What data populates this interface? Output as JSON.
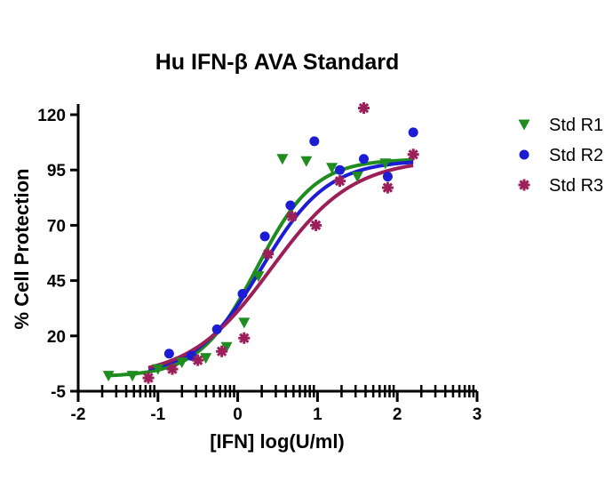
{
  "chart_data": {
    "type": "scatter",
    "title": "Hu IFN-β AVA Standard",
    "xlabel": "[IFN] log(U/ml)",
    "ylabel": "% Cell Protection",
    "xlim": [
      -2,
      3
    ],
    "ylim": [
      -5,
      120
    ],
    "x_ticks": [
      "-2",
      "-1",
      "0",
      "1",
      "2",
      "3"
    ],
    "y_ticks": [
      "-5",
      "20",
      "45",
      "70",
      "95",
      "120"
    ],
    "grid": false,
    "legend_position": "top-right",
    "series": [
      {
        "name": "Std R1",
        "marker": "triangle-down",
        "color": "#1e8c1e",
        "points": [
          [
            -1.62,
            2
          ],
          [
            -1.32,
            2
          ],
          [
            -1.0,
            5
          ],
          [
            -0.7,
            8
          ],
          [
            -0.4,
            10
          ],
          [
            -0.14,
            15
          ],
          [
            0.08,
            26
          ],
          [
            0.26,
            47
          ],
          [
            0.56,
            100
          ],
          [
            0.86,
            99
          ],
          [
            1.18,
            96
          ],
          [
            1.5,
            92
          ],
          [
            1.85,
            98
          ]
        ],
        "fit": {
          "bottom": 1.5,
          "top": 100,
          "log_ec50": 0.24,
          "hill": 1.2,
          "x_range": [
            -1.62,
            2.2
          ]
        }
      },
      {
        "name": "Std R2",
        "marker": "circle",
        "color": "#1c1cd4",
        "points": [
          [
            -0.86,
            12
          ],
          [
            -0.58,
            11
          ],
          [
            -0.26,
            23
          ],
          [
            0.06,
            39
          ],
          [
            0.34,
            65
          ],
          [
            0.66,
            79
          ],
          [
            0.96,
            108
          ],
          [
            1.28,
            95
          ],
          [
            1.58,
            100
          ],
          [
            1.88,
            92
          ],
          [
            2.2,
            112
          ]
        ],
        "fit": {
          "bottom": 2,
          "top": 99.5,
          "log_ec50": 0.3,
          "hill": 1.05,
          "x_range": [
            -1.12,
            2.2
          ]
        }
      },
      {
        "name": "Std R3",
        "marker": "asterisk",
        "color": "#9c1f5a",
        "points": [
          [
            -1.12,
            1
          ],
          [
            -0.82,
            5
          ],
          [
            -0.5,
            9
          ],
          [
            -0.2,
            13
          ],
          [
            0.08,
            19
          ],
          [
            0.38,
            57
          ],
          [
            0.68,
            74
          ],
          [
            0.98,
            70
          ],
          [
            1.28,
            90
          ],
          [
            1.58,
            123
          ],
          [
            1.88,
            87
          ],
          [
            2.2,
            102
          ]
        ],
        "fit": {
          "bottom": 1,
          "top": 100,
          "log_ec50": 0.42,
          "hill": 0.85,
          "x_range": [
            -1.12,
            2.2
          ]
        }
      }
    ]
  }
}
